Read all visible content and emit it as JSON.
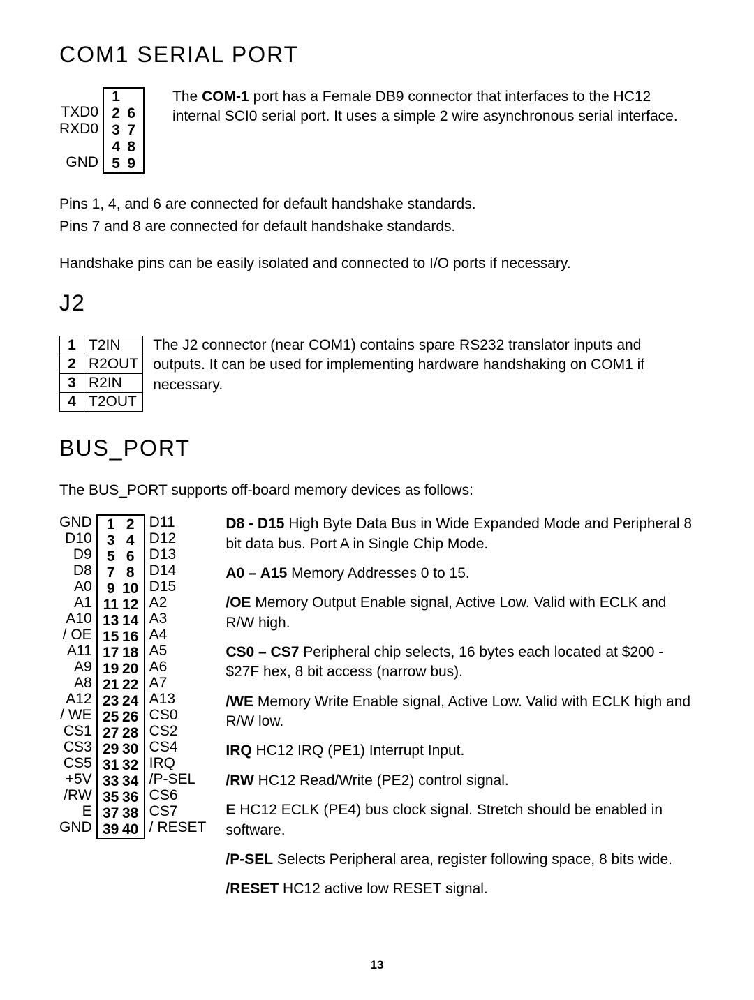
{
  "com1": {
    "heading": "COM1 SERIAL PORT",
    "labels": {
      "txd0": "TXD0",
      "rxd0": "RXD0",
      "gnd": "GND"
    },
    "pins": {
      "r1": "1",
      "r2a": "2",
      "r2b": "6",
      "r3a": "3",
      "r3b": "7",
      "r4a": "4",
      "r4b": "8",
      "r5a": "5",
      "r5b": "9"
    },
    "desc_pre": "The ",
    "desc_bold": "COM-1",
    "desc_post": " port has a Female DB9 connector that interfaces to the HC12 internal SCI0 serial port.  It uses a simple 2 wire asynchronous serial interface.",
    "p1": "Pins 1, 4, and 6 are connected for default handshake standards.",
    "p2": "Pins 7 and 8 are connected for default handshake standards.",
    "p3": "Handshake pins can be easily isolated and connected to I/O ports if necessary."
  },
  "j2": {
    "heading": "J2",
    "rows": [
      {
        "n": "1",
        "sig": "T2IN"
      },
      {
        "n": "2",
        "sig": "R2OUT"
      },
      {
        "n": "3",
        "sig": "R2IN"
      },
      {
        "n": "4",
        "sig": "T2OUT"
      }
    ],
    "desc": "The J2 connector (near COM1) contains spare RS232 translator inputs and outputs.  It can be used for implementing hardware handshaking on COM1 if necessary."
  },
  "bus": {
    "heading": "BUS_PORT",
    "intro": "The BUS_PORT supports off-board memory devices as follows:",
    "rows": [
      {
        "l": "GND",
        "a": "1",
        "b": "2",
        "r": "D11"
      },
      {
        "l": "D10",
        "a": "3",
        "b": "4",
        "r": "D12"
      },
      {
        "l": "D9",
        "a": "5",
        "b": "6",
        "r": "D13"
      },
      {
        "l": "D8",
        "a": "7",
        "b": "8",
        "r": "D14"
      },
      {
        "l": "A0",
        "a": "9",
        "b": "10",
        "r": "D15"
      },
      {
        "l": "A1",
        "a": "11",
        "b": "12",
        "r": "A2"
      },
      {
        "l": "A10",
        "a": "13",
        "b": "14",
        "r": "A3"
      },
      {
        "l": "/ OE",
        "a": "15",
        "b": "16",
        "r": "A4"
      },
      {
        "l": "A11",
        "a": "17",
        "b": "18",
        "r": "A5"
      },
      {
        "l": "A9",
        "a": "19",
        "b": "20",
        "r": "A6"
      },
      {
        "l": "A8",
        "a": "21",
        "b": "22",
        "r": "A7"
      },
      {
        "l": "A12",
        "a": "23",
        "b": "24",
        "r": "A13"
      },
      {
        "l": "/ WE",
        "a": "25",
        "b": "26",
        "r": "CS0"
      },
      {
        "l": "CS1",
        "a": "27",
        "b": "28",
        "r": "CS2"
      },
      {
        "l": "CS3",
        "a": "29",
        "b": "30",
        "r": "CS4"
      },
      {
        "l": "CS5",
        "a": "31",
        "b": "32",
        "r": "IRQ"
      },
      {
        "l": "+5V",
        "a": "33",
        "b": "34",
        "r": "/P-SEL"
      },
      {
        "l": "/RW",
        "a": "35",
        "b": "36",
        "r": "CS6"
      },
      {
        "l": "E",
        "a": "37",
        "b": "38",
        "r": "CS7"
      },
      {
        "l": "GND",
        "a": "39",
        "b": "40",
        "r": "/ RESET"
      }
    ],
    "notes": {
      "d8_b": "D8 - D15",
      "d8_t": "  High Byte Data Bus in Wide Expanded Mode and Peripheral 8 bit data bus.  Port A in Single Chip Mode.",
      "a0_b": "A0 – A15",
      "a0_t": "  Memory Addresses 0 to 15.",
      "oe_b": "/OE",
      "oe_t": "  Memory Output Enable signal, Active Low.  Valid with ECLK and R/W high.",
      "cs_b": "CS0 – CS7",
      "cs_t": "  Peripheral chip selects, 16 bytes each located at $200 - $27F hex,  8 bit access (narrow bus).",
      "we_b": "/WE",
      "we_t": "  Memory Write Enable signal, Active Low.  Valid with ECLK high and R/W low.",
      "irq_b": "IRQ",
      "irq_t": "  HC12 IRQ (PE1) Interrupt Input.",
      "rw_b": "/RW",
      "rw_t": "  HC12 Read/Write (PE2) control signal.",
      "e_b": "E",
      "e_t": "  HC12 ECLK (PE4) bus clock signal.  Stretch should be enabled in software.",
      "ps_b": "/P-SEL",
      "ps_t": "  Selects Peripheral area, register following space, 8 bits wide.",
      "rs_b": "/RESET",
      "rs_t": "  HC12 active low RESET signal."
    }
  },
  "page_number": "13"
}
